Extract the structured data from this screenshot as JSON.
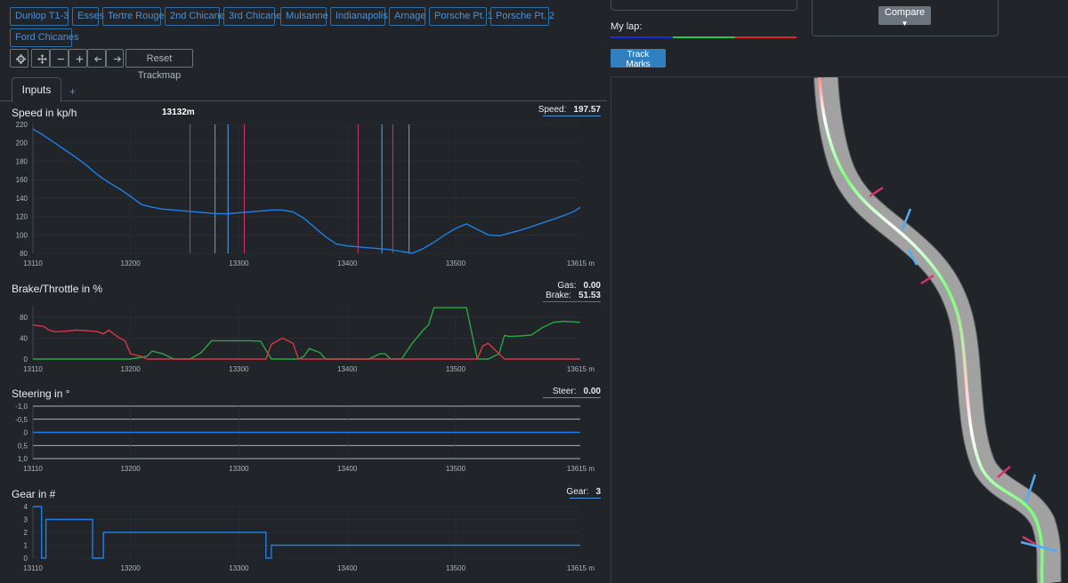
{
  "sectors": [
    "Dunlop T1-3",
    "Esses",
    "Tertre Rouge",
    "2nd Chicane",
    "3rd Chicane",
    "Mulsanne",
    "Indianapolis",
    "Arnage",
    "Porsche Pt. 1",
    "Porsche Pt. 2",
    "Ford Chicanes"
  ],
  "toolbar": {
    "reset_label": "Reset Trackmap"
  },
  "tabs": {
    "active": "Inputs",
    "add": "+"
  },
  "x_axis": {
    "min": 13110,
    "max": 13615,
    "ticks": [
      "13110",
      "13200",
      "13300",
      "13400",
      "13500"
    ],
    "end_label": "13615 m"
  },
  "speed": {
    "title": "Speed in kp/h",
    "cursor_text": "13132m",
    "readout_label": "Speed:",
    "readout_value": "197.57",
    "y_ticks": [
      "220",
      "200",
      "180",
      "160",
      "140",
      "120",
      "100",
      "80"
    ]
  },
  "brake": {
    "title": "Brake/Throttle in %",
    "gas_label": "Gas:",
    "gas_value": "0.00",
    "brake_label": "Brake:",
    "brake_value": "51.53",
    "y_ticks": [
      "80",
      "40",
      "0"
    ]
  },
  "steering": {
    "title": "Steering in °",
    "readout_label": "Steer:",
    "readout_value": "0.00",
    "y_ticks": [
      "-1,0",
      "-0,5",
      "0",
      "0,5",
      "1,0"
    ]
  },
  "gear": {
    "title": "Gear in #",
    "readout_label": "Gear:",
    "readout_value": "3",
    "y_ticks": [
      "4",
      "3",
      "2",
      "1",
      "0"
    ]
  },
  "right": {
    "compare_label": "Compare",
    "mylap_label": "My lap:",
    "trackmarks_label": "Track Marks"
  },
  "colors": {
    "accent": "#4a90d9",
    "speed_line": "#1e7fe8",
    "brake_line": "#dc3545",
    "throttle_line": "#28a745",
    "marker_red": "#d6336c",
    "marker_blue": "#4dabf7"
  },
  "chart_data": [
    {
      "type": "line",
      "title": "Speed in kp/h",
      "xlabel": "m",
      "ylabel": "kp/h",
      "xlim": [
        13110,
        13615
      ],
      "ylim": [
        80,
        220
      ],
      "x": [
        13110,
        13120,
        13130,
        13140,
        13150,
        13160,
        13170,
        13180,
        13190,
        13200,
        13210,
        13220,
        13230,
        13240,
        13250,
        13260,
        13270,
        13280,
        13290,
        13300,
        13310,
        13320,
        13330,
        13340,
        13350,
        13360,
        13370,
        13380,
        13390,
        13400,
        13410,
        13420,
        13430,
        13440,
        13450,
        13455,
        13460,
        13470,
        13480,
        13490,
        13500,
        13510,
        13520,
        13530,
        13540,
        13550,
        13560,
        13570,
        13580,
        13590,
        13600,
        13610,
        13615
      ],
      "values": [
        215,
        208,
        200,
        192,
        184,
        175,
        165,
        157,
        150,
        142,
        133,
        130,
        128,
        127,
        126,
        125,
        124,
        123,
        123,
        124,
        125,
        126,
        127,
        127,
        125,
        118,
        108,
        98,
        90,
        88,
        87,
        86,
        85,
        84,
        82,
        81,
        80,
        85,
        92,
        100,
        107,
        112,
        106,
        100,
        99,
        102,
        105,
        109,
        113,
        117,
        121,
        126,
        130
      ],
      "markers": {
        "red": [
          13255,
          13305,
          13410,
          13442
        ],
        "blue": [
          13278,
          13290,
          13432,
          13457
        ]
      }
    },
    {
      "type": "line",
      "title": "Brake/Throttle in %",
      "xlim": [
        13110,
        13615
      ],
      "ylim": [
        0,
        100
      ],
      "series": [
        {
          "name": "Brake",
          "x": [
            13110,
            13120,
            13125,
            13130,
            13140,
            13150,
            13160,
            13170,
            13175,
            13180,
            13190,
            13195,
            13200,
            13210,
            13215,
            13220,
            13230,
            13240,
            13250,
            13260,
            13270,
            13290,
            13310,
            13325,
            13330,
            13340,
            13350,
            13355,
            13370,
            13380,
            13390,
            13400,
            13440,
            13460,
            13480,
            13490,
            13500,
            13510,
            13520,
            13525,
            13530,
            13540,
            13545,
            13550,
            13560,
            13580,
            13615
          ],
          "values": [
            65,
            62,
            55,
            52,
            53,
            55,
            54,
            52,
            48,
            55,
            40,
            35,
            10,
            5,
            0,
            0,
            0,
            0,
            0,
            0,
            0,
            0,
            0,
            0,
            28,
            40,
            30,
            0,
            0,
            0,
            0,
            0,
            0,
            0,
            0,
            0,
            0,
            0,
            0,
            25,
            30,
            10,
            0,
            0,
            0,
            0,
            0
          ]
        },
        {
          "name": "Throttle",
          "x": [
            13110,
            13200,
            13215,
            13220,
            13230,
            13240,
            13250,
            13255,
            13265,
            13275,
            13285,
            13295,
            13310,
            13320,
            13330,
            13340,
            13355,
            13360,
            13365,
            13375,
            13380,
            13395,
            13400,
            13420,
            13430,
            13435,
            13440,
            13450,
            13460,
            13470,
            13475,
            13480,
            13490,
            13500,
            13505,
            13510,
            13520,
            13530,
            13540,
            13545,
            13550,
            13560,
            13570,
            13580,
            13590,
            13600,
            13615
          ],
          "values": [
            0,
            0,
            5,
            15,
            10,
            0,
            0,
            0,
            12,
            35,
            35,
            35,
            35,
            34,
            0,
            0,
            0,
            5,
            20,
            12,
            0,
            0,
            0,
            0,
            10,
            10,
            0,
            0,
            30,
            55,
            65,
            98,
            98,
            98,
            98,
            98,
            0,
            0,
            10,
            45,
            43,
            44,
            46,
            60,
            70,
            72,
            70
          ]
        }
      ]
    },
    {
      "type": "line",
      "title": "Steering in °",
      "xlim": [
        13110,
        13615
      ],
      "ylim": [
        -1,
        1
      ],
      "x": [
        13110,
        13615
      ],
      "values": [
        0,
        0
      ]
    },
    {
      "type": "line",
      "title": "Gear in #",
      "xlim": [
        13110,
        13615
      ],
      "ylim": [
        0,
        4
      ],
      "x": [
        13110,
        13118,
        13118,
        13122,
        13122,
        13125,
        13125,
        13165,
        13165,
        13170,
        13170,
        13175,
        13175,
        13325,
        13325,
        13330,
        13330,
        13615
      ],
      "values": [
        4,
        4,
        0,
        0,
        3,
        3,
        3,
        3,
        0,
        0,
        0,
        0,
        2,
        2,
        0,
        0,
        1,
        1
      ]
    }
  ]
}
